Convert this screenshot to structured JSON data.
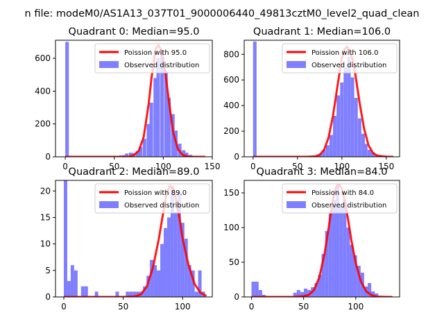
{
  "figure": {
    "suptitle": "n file: modeM0/AS1A13_037T01_9000006440_49813cztM0_level2_quad_clean"
  },
  "colors": {
    "poisson": "#ff0000",
    "observed": "#7f7fff",
    "axes": "#000000"
  },
  "chart_data": [
    {
      "type": "bar",
      "title": "Quadrant 0: Median=95.0",
      "xlabel": "",
      "ylabel": "",
      "xlim": [
        -10,
        150
      ],
      "ylim": [
        0,
        710
      ],
      "xticks": [
        0,
        50,
        100,
        150
      ],
      "yticks": [
        0,
        200,
        400,
        600
      ],
      "legend_position": "top-right",
      "series": [
        {
          "name": "Poission with 95.0",
          "kind": "line",
          "x": [
            0,
            40,
            60,
            65,
            70,
            75,
            80,
            85,
            88,
            91,
            93,
            95,
            97,
            100,
            103,
            106,
            110,
            115,
            120,
            125,
            130,
            140,
            143
          ],
          "y": [
            0,
            0,
            0,
            1,
            10,
            37,
            120,
            320,
            480,
            610,
            665,
            680,
            660,
            590,
            470,
            330,
            150,
            45,
            10,
            2,
            0,
            0,
            0
          ]
        },
        {
          "name": "Observed distribution",
          "kind": "hist",
          "bin_width": 3.6,
          "bins": [
            [
              0,
              700
            ],
            [
              3.6,
              5
            ],
            [
              7.2,
              0
            ],
            [
              55,
              8
            ],
            [
              58,
              10
            ],
            [
              61,
              20
            ],
            [
              65,
              25
            ],
            [
              68,
              22
            ],
            [
              72,
              35
            ],
            [
              75,
              60
            ],
            [
              79,
              110
            ],
            [
              83,
              200
            ],
            [
              86,
              330
            ],
            [
              90,
              480
            ],
            [
              93,
              600
            ],
            [
              97,
              650
            ],
            [
              101,
              520
            ],
            [
              104,
              360
            ],
            [
              108,
              260
            ],
            [
              111,
              160
            ],
            [
              115,
              80
            ],
            [
              119,
              40
            ],
            [
              122,
              25
            ],
            [
              126,
              12
            ],
            [
              130,
              6
            ],
            [
              133,
              3
            ],
            [
              137,
              2
            ]
          ]
        }
      ]
    },
    {
      "type": "bar",
      "title": "Quadrant 1: Median=106.0",
      "xlabel": "",
      "ylabel": "",
      "xlim": [
        -10,
        165
      ],
      "ylim": [
        0,
        910
      ],
      "xticks": [
        0,
        50,
        100,
        150
      ],
      "yticks": [
        0,
        200,
        400,
        600,
        800
      ],
      "legend_position": "top-right",
      "series": [
        {
          "name": "Poission with 106.0",
          "kind": "line",
          "x": [
            0,
            60,
            70,
            75,
            80,
            85,
            90,
            95,
            100,
            103,
            106,
            109,
            112,
            115,
            120,
            125,
            130,
            135,
            140,
            150,
            158
          ],
          "y": [
            0,
            0,
            3,
            15,
            55,
            150,
            320,
            550,
            770,
            840,
            860,
            830,
            760,
            650,
            420,
            220,
            90,
            30,
            8,
            1,
            0
          ]
        },
        {
          "name": "Observed distribution",
          "kind": "hist",
          "bin_width": 3.9,
          "bins": [
            [
              0,
              900
            ],
            [
              3.9,
              5
            ],
            [
              66,
              6
            ],
            [
              70,
              12
            ],
            [
              74,
              25
            ],
            [
              78,
              55
            ],
            [
              82,
              90
            ],
            [
              86,
              170
            ],
            [
              90,
              320
            ],
            [
              94,
              480
            ],
            [
              98,
              580
            ],
            [
              102,
              700
            ],
            [
              106,
              780
            ],
            [
              110,
              620
            ],
            [
              114,
              460
            ],
            [
              118,
              300
            ],
            [
              122,
              180
            ],
            [
              125,
              100
            ],
            [
              129,
              55
            ],
            [
              133,
              35
            ],
            [
              137,
              18
            ],
            [
              141,
              10
            ],
            [
              145,
              6
            ],
            [
              149,
              3
            ],
            [
              153,
              2
            ]
          ]
        }
      ]
    },
    {
      "type": "bar",
      "title": "Quadrant 2: Median=89.0",
      "xlabel": "",
      "ylabel": "",
      "xlim": [
        -7,
        125
      ],
      "ylim": [
        0,
        22
      ],
      "xticks": [
        0,
        50,
        100
      ],
      "yticks": [
        0,
        5,
        10,
        15,
        20
      ],
      "legend_position": "top-right",
      "series": [
        {
          "name": "Poission with 89.0",
          "kind": "line",
          "x": [
            0,
            50,
            60,
            65,
            70,
            75,
            80,
            83,
            86,
            89,
            92,
            95,
            98,
            100,
            105,
            110,
            115,
            120
          ],
          "y": [
            0,
            0,
            0.1,
            0.5,
            2,
            5.5,
            11,
            15,
            19,
            21,
            20.5,
            18,
            14,
            11,
            6,
            2.5,
            0.8,
            0.2
          ]
        },
        {
          "name": "Observed distribution",
          "kind": "hist",
          "bin_width": 2.9,
          "bins": [
            [
              0,
              22
            ],
            [
              2.9,
              3
            ],
            [
              5.8,
              6
            ],
            [
              8.7,
              5
            ],
            [
              14.5,
              2
            ],
            [
              17.4,
              2
            ],
            [
              26.1,
              1
            ],
            [
              43.5,
              1
            ],
            [
              52.2,
              1
            ],
            [
              55.1,
              1
            ],
            [
              58,
              1
            ],
            [
              60.9,
              1
            ],
            [
              63.8,
              1
            ],
            [
              66.7,
              2
            ],
            [
              69.6,
              4
            ],
            [
              72.5,
              7
            ],
            [
              75.4,
              6
            ],
            [
              78.3,
              5
            ],
            [
              81.2,
              10
            ],
            [
              84.1,
              13
            ],
            [
              87,
              15
            ],
            [
              89.9,
              21
            ],
            [
              92.8,
              16
            ],
            [
              95.7,
              20
            ],
            [
              98.6,
              14
            ],
            [
              101.5,
              11
            ],
            [
              104.4,
              6
            ],
            [
              107.3,
              5
            ],
            [
              110.2,
              1
            ],
            [
              113.1,
              5
            ],
            [
              116,
              1
            ]
          ]
        }
      ]
    },
    {
      "type": "bar",
      "title": "Quadrant 3: Median=84.0",
      "xlabel": "",
      "ylabel": "",
      "xlim": [
        -7,
        142
      ],
      "ylim": [
        0,
        168
      ],
      "xticks": [
        0,
        50,
        100
      ],
      "yticks": [
        0,
        50,
        100,
        150
      ],
      "legend_position": "top-right",
      "series": [
        {
          "name": "Poission with 84.0",
          "kind": "line",
          "x": [
            0,
            40,
            50,
            55,
            60,
            65,
            70,
            74,
            78,
            81,
            84,
            87,
            90,
            93,
            96,
            100,
            105,
            110,
            115,
            120,
            130,
            135
          ],
          "y": [
            0,
            0,
            1,
            3,
            10,
            28,
            62,
            100,
            140,
            158,
            162,
            155,
            135,
            108,
            80,
            48,
            22,
            8,
            2.5,
            0.5,
            0,
            0
          ]
        },
        {
          "name": "Observed distribution",
          "kind": "hist",
          "bin_width": 3.4,
          "bins": [
            [
              0,
              22
            ],
            [
              3.4,
              22
            ],
            [
              6.8,
              10
            ],
            [
              10.2,
              3
            ],
            [
              40,
              6
            ],
            [
              43.4,
              10
            ],
            [
              46.8,
              7
            ],
            [
              50.2,
              12
            ],
            [
              53.6,
              10
            ],
            [
              57,
              14
            ],
            [
              60.4,
              20
            ],
            [
              63.8,
              32
            ],
            [
              67.2,
              62
            ],
            [
              70.6,
              95
            ],
            [
              74,
              120
            ],
            [
              77.4,
              140
            ],
            [
              80.8,
              162
            ],
            [
              84.2,
              130
            ],
            [
              87.6,
              140
            ],
            [
              91,
              100
            ],
            [
              94.4,
              75
            ],
            [
              97.8,
              60
            ],
            [
              101.2,
              45
            ],
            [
              104.6,
              35
            ],
            [
              108,
              15
            ],
            [
              111.4,
              20
            ],
            [
              114.8,
              8
            ],
            [
              118.2,
              5
            ]
          ]
        }
      ]
    }
  ]
}
